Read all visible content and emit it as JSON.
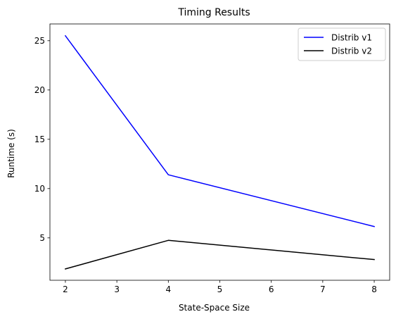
{
  "chart_data": {
    "type": "line",
    "title": "Timing Results",
    "xlabel": "State-Space Size",
    "ylabel": "Runtime (s)",
    "x": [
      2,
      4,
      8
    ],
    "xlim": [
      1.7,
      8.3
    ],
    "ylim": [
      0.7,
      26.7
    ],
    "xticks": [
      2,
      3,
      4,
      5,
      6,
      7,
      8
    ],
    "yticks": [
      5,
      10,
      15,
      20,
      25
    ],
    "grid": false,
    "legend_position": "top-right",
    "series": [
      {
        "name": "Distrib v1",
        "color": "#0000ff",
        "values": [
          25.5,
          11.4,
          6.15
        ]
      },
      {
        "name": "Distrib v2",
        "color": "#000000",
        "values": [
          1.85,
          4.75,
          2.8
        ]
      }
    ]
  }
}
